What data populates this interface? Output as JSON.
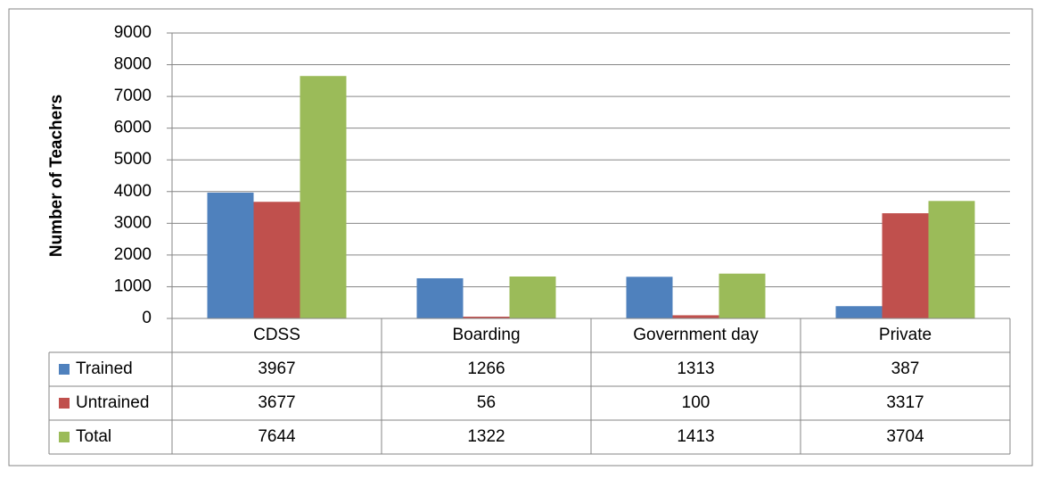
{
  "chart_data": {
    "type": "bar",
    "y_label": "Number of Teachers",
    "categories": [
      "CDSS",
      "Boarding",
      "Government day",
      "Private"
    ],
    "series": [
      {
        "name": "Trained",
        "color": "#4f81bd",
        "values": [
          3967,
          1266,
          1313,
          387
        ]
      },
      {
        "name": "Untrained",
        "color": "#c0504d",
        "values": [
          3677,
          56,
          100,
          3317
        ]
      },
      {
        "name": "Total",
        "color": "#9bbb59",
        "values": [
          7644,
          1322,
          1413,
          3704
        ]
      }
    ],
    "ylim": [
      0,
      9000
    ],
    "yticks": [
      0,
      1000,
      2000,
      3000,
      4000,
      5000,
      6000,
      7000,
      8000,
      9000
    ],
    "grid": true,
    "data_table": true
  }
}
